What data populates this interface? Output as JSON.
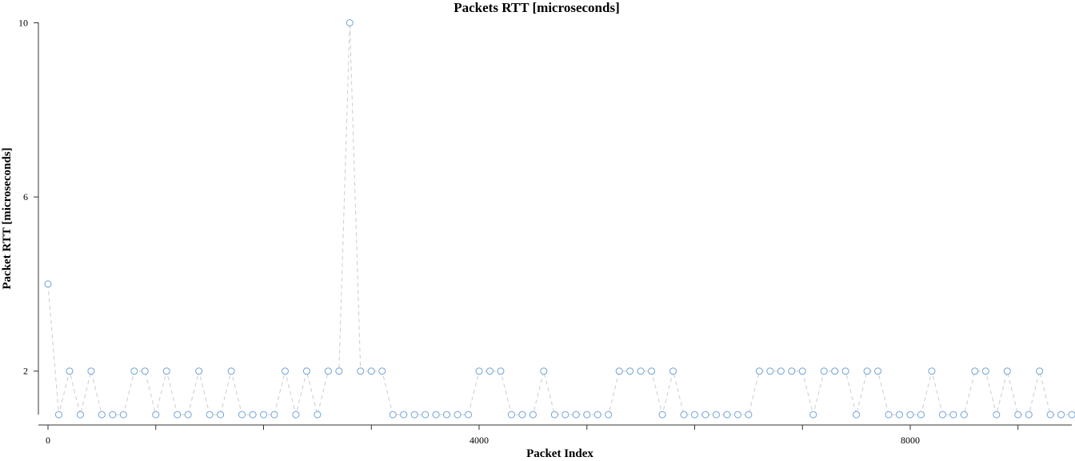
{
  "chart_data": {
    "type": "scatter",
    "title": "Packets RTT [microseconds]",
    "xlabel": "Packet Index",
    "ylabel": "Packet RTT [microseconds]",
    "xlim": [
      0,
      9500
    ],
    "ylim": [
      0,
      10
    ],
    "x_labeled_ticks": [
      0,
      4000,
      8000
    ],
    "x_minor_ticks": [
      1000,
      2000,
      3000,
      5000,
      6000,
      7000,
      9000
    ],
    "y_ticks": [
      2,
      6,
      10
    ],
    "grid": false,
    "legend": "none",
    "line_style": "dashed",
    "colors": {
      "marker": "#6fa3d8",
      "line": "#cccccc",
      "axis": "#333333"
    },
    "series": [
      {
        "x": [
          0,
          100,
          200,
          300,
          400,
          500,
          600,
          700,
          800,
          900,
          1000,
          1100,
          1200,
          1300,
          1400,
          1500,
          1600,
          1700,
          1800,
          1900,
          2000,
          2100,
          2200,
          2300,
          2400,
          2500,
          2600,
          2700,
          2800,
          2900,
          3000,
          3100,
          3200,
          3300,
          3400,
          3500,
          3600,
          3700,
          3800,
          3900,
          4000,
          4100,
          4200,
          4300,
          4400,
          4500,
          4600,
          4700,
          4800,
          4900,
          5000,
          5100,
          5200,
          5300,
          5400,
          5500,
          5600,
          5700,
          5800,
          5900,
          6000,
          6100,
          6200,
          6300,
          6400,
          6500,
          6600,
          6700,
          6800,
          6900,
          7000,
          7100,
          7200,
          7300,
          7400,
          7500,
          7600,
          7700,
          7800,
          7900,
          8000,
          8100,
          8200,
          8300,
          8400,
          8500,
          8600,
          8700,
          8800,
          8900,
          9000,
          9100,
          9200,
          9300,
          9400,
          9500
        ],
        "y": [
          4,
          1,
          2,
          1,
          2,
          1,
          1,
          1,
          2,
          2,
          1,
          2,
          1,
          1,
          2,
          1,
          1,
          2,
          1,
          1,
          1,
          1,
          2,
          1,
          2,
          1,
          2,
          2,
          10,
          2,
          2,
          2,
          1,
          1,
          1,
          1,
          1,
          1,
          1,
          1,
          2,
          2,
          2,
          1,
          1,
          1,
          2,
          1,
          1,
          1,
          1,
          1,
          1,
          2,
          2,
          2,
          2,
          1,
          2,
          1,
          1,
          1,
          1,
          1,
          1,
          1,
          2,
          2,
          2,
          2,
          2,
          1,
          2,
          2,
          2,
          1,
          2,
          2,
          1,
          1,
          1,
          1,
          2,
          1,
          1,
          1,
          2,
          2,
          1,
          2,
          1,
          1,
          2,
          1,
          1,
          1
        ]
      }
    ]
  }
}
